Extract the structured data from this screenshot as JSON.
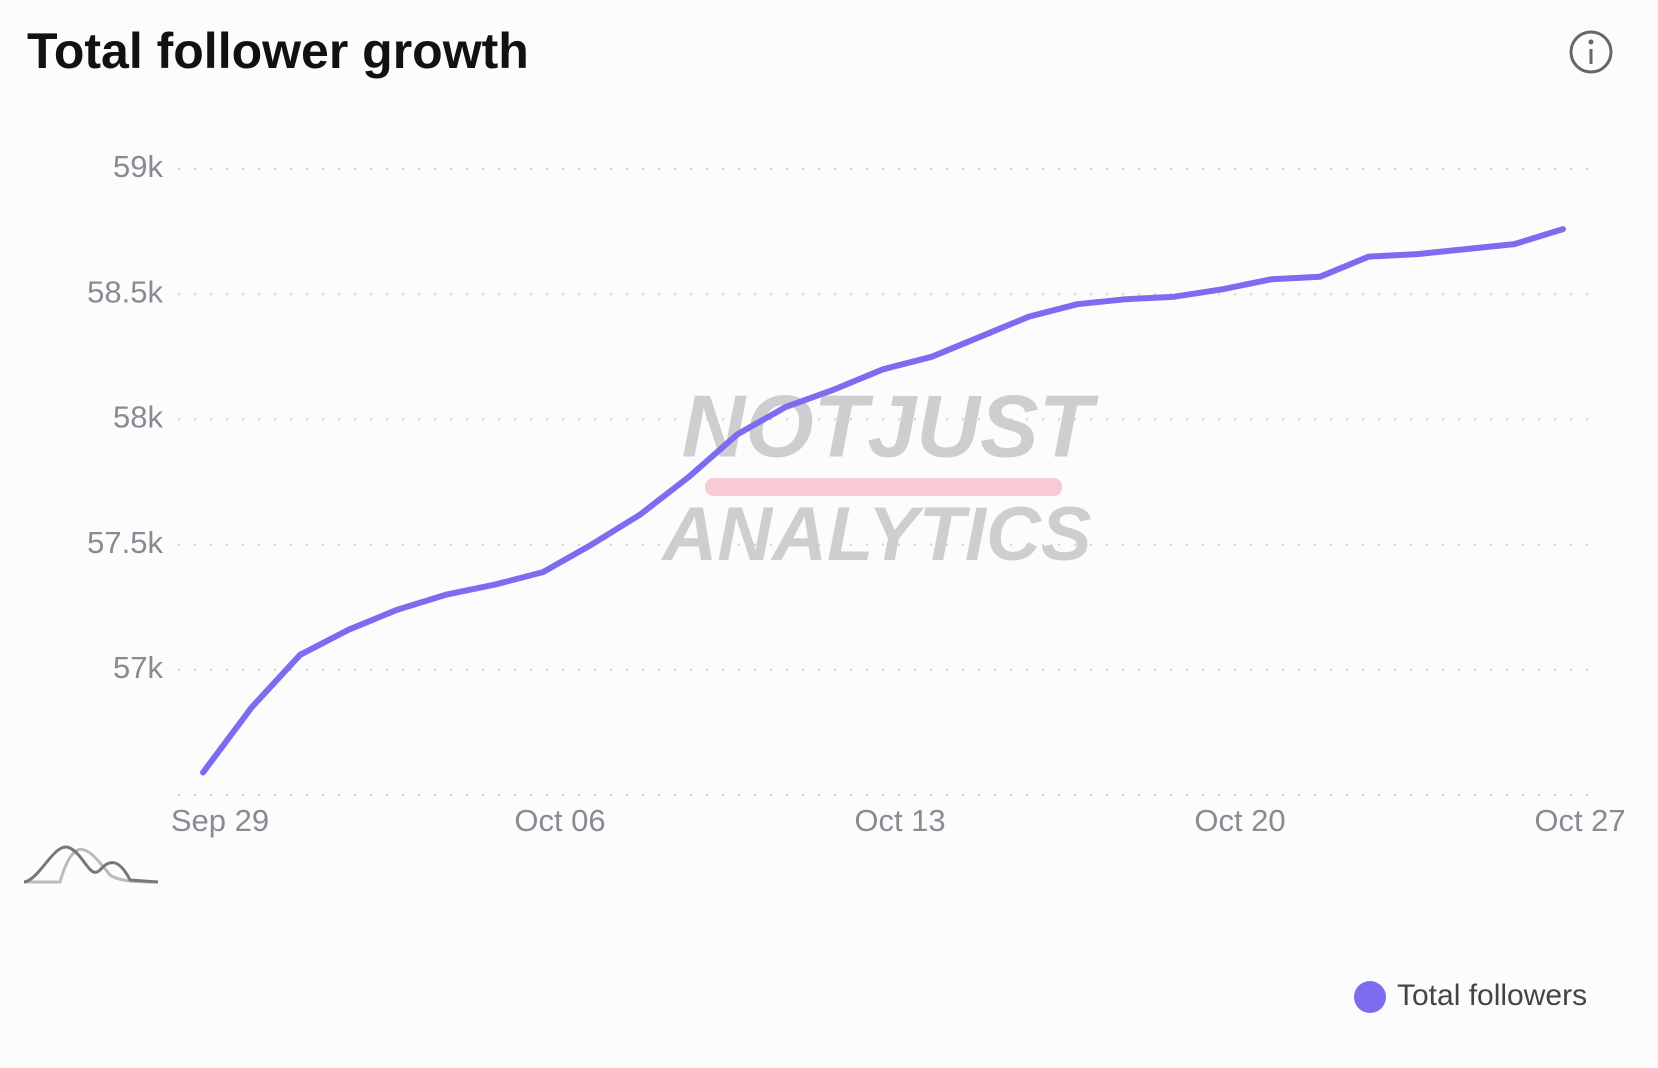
{
  "chart_data": {
    "type": "line",
    "title": "Total follower growth",
    "categories": [
      "Sep 29",
      null,
      null,
      null,
      null,
      null,
      null,
      "Oct 06",
      null,
      null,
      null,
      null,
      null,
      null,
      "Oct 13",
      null,
      null,
      null,
      null,
      null,
      null,
      "Oct 20",
      null,
      null,
      null,
      null,
      null,
      null,
      "Oct 27"
    ],
    "series": [
      {
        "name": "Total followers",
        "color": "#7b6cf0",
        "values": [
          56590,
          56850,
          57060,
          57160,
          57240,
          57300,
          57340,
          57390,
          57500,
          57620,
          57770,
          57940,
          58050,
          58120,
          58200,
          58250,
          58330,
          58410,
          58460,
          58480,
          58490,
          58520,
          58560,
          58570,
          58650,
          58660,
          58680,
          58700,
          58760
        ]
      }
    ],
    "ylim": [
      56500,
      59000
    ],
    "yticks": [
      {
        "value": 57000,
        "label": "57k"
      },
      {
        "value": 57500,
        "label": "57.5k"
      },
      {
        "value": 58000,
        "label": "58k"
      },
      {
        "value": 58500,
        "label": "58.5k"
      },
      {
        "value": 59000,
        "label": "59k"
      }
    ],
    "grid": true,
    "legend": "bottom-right"
  },
  "watermark": {
    "line1": "NOTJUST",
    "line2": "ANALYTICS"
  }
}
